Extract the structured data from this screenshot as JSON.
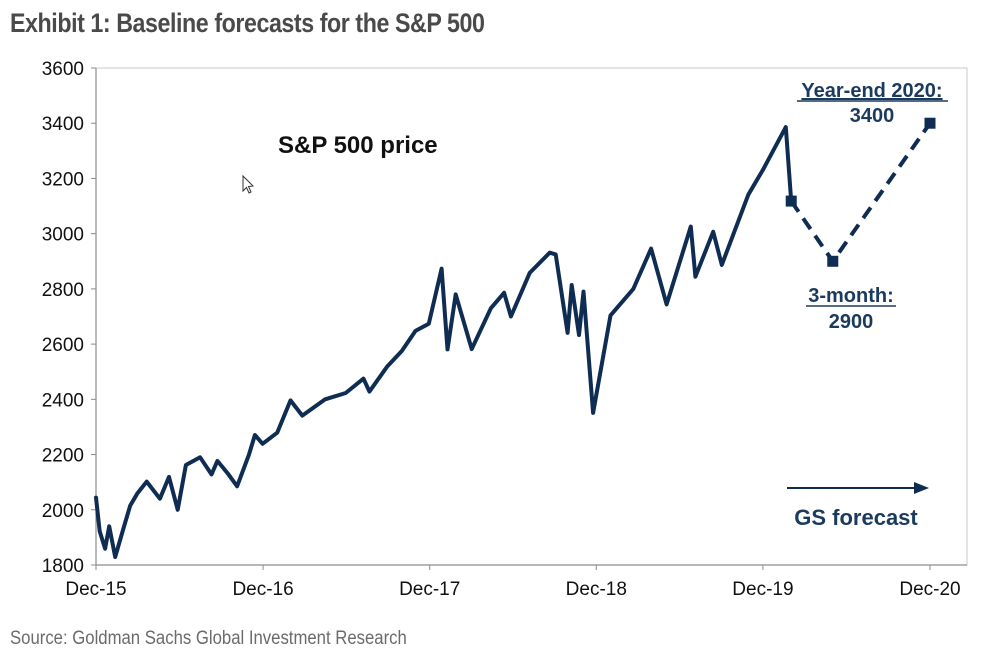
{
  "title": "Exhibit 1: Baseline forecasts for the S&P 500",
  "source": "Source: Goldman Sachs Global Investment Research",
  "colors": {
    "series": "#0f2d52",
    "annotation": "#1a3a5e",
    "title": "#4a4a4a",
    "source": "#6b6b6b"
  },
  "chart_data": {
    "type": "line",
    "title": "",
    "xlabel": "",
    "ylabel": "",
    "xlim": [
      "2015-12-31",
      "2020-12-31"
    ],
    "ylim": [
      1800,
      3600
    ],
    "yticks": [
      1800,
      2000,
      2200,
      2400,
      2600,
      2800,
      3000,
      3200,
      3400,
      3600
    ],
    "xticks": [
      {
        "label": "Dec-15",
        "date": "2015-12-31"
      },
      {
        "label": "Dec-16",
        "date": "2016-12-31"
      },
      {
        "label": "Dec-17",
        "date": "2017-12-31"
      },
      {
        "label": "Dec-18",
        "date": "2018-12-31"
      },
      {
        "label": "Dec-19",
        "date": "2019-12-31"
      },
      {
        "label": "Dec-20",
        "date": "2020-12-31"
      }
    ],
    "grid": false,
    "series": [
      {
        "name": "S&P 500 price",
        "style": "solid",
        "points": [
          [
            "2015-12-31",
            2044
          ],
          [
            "2016-01-08",
            1922
          ],
          [
            "2016-01-20",
            1859
          ],
          [
            "2016-01-29",
            1940
          ],
          [
            "2016-02-11",
            1829
          ],
          [
            "2016-02-29",
            1932
          ],
          [
            "2016-03-15",
            2015
          ],
          [
            "2016-03-31",
            2060
          ],
          [
            "2016-04-20",
            2102
          ],
          [
            "2016-05-19",
            2040
          ],
          [
            "2016-06-08",
            2119
          ],
          [
            "2016-06-27",
            2000
          ],
          [
            "2016-07-15",
            2162
          ],
          [
            "2016-08-15",
            2190
          ],
          [
            "2016-09-09",
            2128
          ],
          [
            "2016-09-22",
            2177
          ],
          [
            "2016-10-14",
            2133
          ],
          [
            "2016-11-04",
            2085
          ],
          [
            "2016-11-30",
            2199
          ],
          [
            "2016-12-13",
            2271
          ],
          [
            "2016-12-30",
            2239
          ],
          [
            "2017-01-31",
            2279
          ],
          [
            "2017-03-01",
            2396
          ],
          [
            "2017-03-27",
            2341
          ],
          [
            "2017-05-16",
            2400
          ],
          [
            "2017-06-30",
            2423
          ],
          [
            "2017-08-08",
            2475
          ],
          [
            "2017-08-21",
            2428
          ],
          [
            "2017-09-29",
            2519
          ],
          [
            "2017-10-31",
            2575
          ],
          [
            "2017-11-30",
            2648
          ],
          [
            "2017-12-29",
            2674
          ],
          [
            "2018-01-26",
            2873
          ],
          [
            "2018-02-08",
            2581
          ],
          [
            "2018-02-26",
            2780
          ],
          [
            "2018-04-02",
            2582
          ],
          [
            "2018-05-14",
            2730
          ],
          [
            "2018-06-12",
            2786
          ],
          [
            "2018-06-27",
            2700
          ],
          [
            "2018-08-07",
            2858
          ],
          [
            "2018-09-20",
            2931
          ],
          [
            "2018-10-03",
            2925
          ],
          [
            "2018-10-29",
            2641
          ],
          [
            "2018-11-07",
            2814
          ],
          [
            "2018-11-23",
            2633
          ],
          [
            "2018-12-03",
            2790
          ],
          [
            "2018-12-24",
            2351
          ],
          [
            "2019-01-31",
            2704
          ],
          [
            "2019-03-22",
            2800
          ],
          [
            "2019-04-30",
            2946
          ],
          [
            "2019-06-03",
            2744
          ],
          [
            "2019-07-26",
            3026
          ],
          [
            "2019-08-05",
            2844
          ],
          [
            "2019-09-13",
            3007
          ],
          [
            "2019-10-02",
            2887
          ],
          [
            "2019-11-29",
            3141
          ],
          [
            "2019-12-31",
            3231
          ],
          [
            "2020-02-19",
            3386
          ],
          [
            "2020-03-02",
            3118
          ]
        ]
      },
      {
        "name": "GS forecast",
        "style": "dashed",
        "points": [
          [
            "2020-03-02",
            3118
          ],
          [
            "2020-06-01",
            2900
          ],
          [
            "2020-12-31",
            3400
          ]
        ]
      }
    ],
    "annotations": [
      {
        "text": "S&P 500 price",
        "anchor": "upper-left"
      },
      {
        "text": "Year-end 2020:",
        "value_text": "3400",
        "date": "2020-12-31",
        "value": 3400
      },
      {
        "text": "3-month:",
        "value_text": "2900",
        "date": "2020-06-01",
        "value": 2900
      },
      {
        "text": "GS forecast",
        "arrow": true,
        "anchor": "bottom-right"
      }
    ]
  }
}
